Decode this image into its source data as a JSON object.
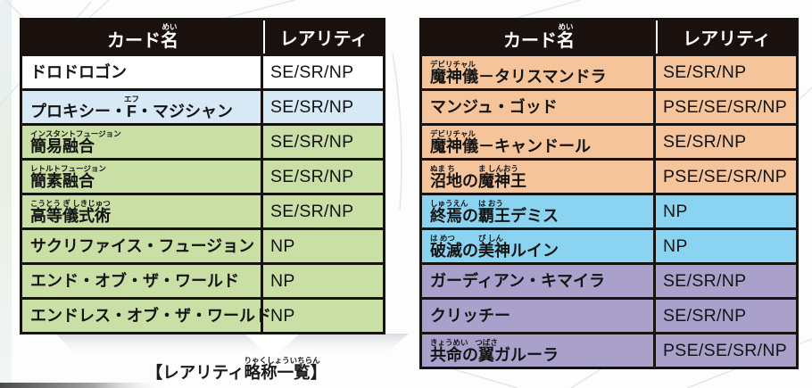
{
  "colors": {
    "border": "#161310",
    "header_bg": "#1a100d",
    "header_text": "#ffffff",
    "body_text": "#141414",
    "white": "#ffffff",
    "blue": "#d8e9f6",
    "green": "#cadfa5",
    "orange": "#f5c49b",
    "cyan": "#8bd4f1",
    "purple": "#a9a0cc"
  },
  "table_header": {
    "name_segments": [
      {
        "t": "カード"
      },
      {
        "t": "名",
        "r": "めい"
      }
    ],
    "rarity_label": "レアリティ"
  },
  "tables": [
    {
      "id": "left",
      "rows": [
        {
          "segments": [
            {
              "t": "ドロドロゴン"
            }
          ],
          "rarity": "SE/SR/NP",
          "bg": "white"
        },
        {
          "segments": [
            {
              "t": "プロキシー・"
            },
            {
              "t": "F",
              "r": "エフ"
            },
            {
              "t": "・マジシャン"
            }
          ],
          "rarity": "SE/SR/NP",
          "bg": "blue"
        },
        {
          "segments": [
            {
              "t": "簡易融合",
              "r": "インスタントフュージョン"
            }
          ],
          "rarity": "SE/SR/NP",
          "bg": "green"
        },
        {
          "segments": [
            {
              "t": "簡素融合",
              "r": "レトルトフュージョン"
            }
          ],
          "rarity": "SE/SR/NP",
          "bg": "green"
        },
        {
          "segments": [
            {
              "t": "高等儀式術",
              "r": "こうとう ぎ しきじゅつ"
            }
          ],
          "rarity": "SE/SR/NP",
          "bg": "green"
        },
        {
          "segments": [
            {
              "t": "サクリファイス・フュージョン"
            }
          ],
          "rarity": "NP",
          "bg": "green"
        },
        {
          "segments": [
            {
              "t": "エンド・オブ・ザ・ワールド"
            }
          ],
          "rarity": "NP",
          "bg": "green"
        },
        {
          "segments": [
            {
              "t": "エンドレス・オブ・ザ・ワールド"
            }
          ],
          "rarity": "NP",
          "bg": "green"
        }
      ]
    },
    {
      "id": "right",
      "rows": [
        {
          "segments": [
            {
              "t": "魔神儀",
              "r": "デビリチャル"
            },
            {
              "t": "－タリスマンドラ"
            }
          ],
          "rarity": "SE/SR/NP",
          "bg": "orange"
        },
        {
          "segments": [
            {
              "t": "マンジュ・ゴッド"
            }
          ],
          "rarity": "PSE/SE/SR/NP",
          "bg": "orange"
        },
        {
          "segments": [
            {
              "t": "魔神儀",
              "r": "デビリチャル"
            },
            {
              "t": "－キャンドール"
            }
          ],
          "rarity": "SE/SR/NP",
          "bg": "orange"
        },
        {
          "segments": [
            {
              "t": "沼地",
              "r": "ぬま ち"
            },
            {
              "t": "の"
            },
            {
              "t": "魔神王",
              "r": "ま しんおう"
            }
          ],
          "rarity": "PSE/SE/SR/NP",
          "bg": "orange"
        },
        {
          "segments": [
            {
              "t": "終焉",
              "r": "しゅうえん"
            },
            {
              "t": "の"
            },
            {
              "t": "覇王",
              "r": "は おう"
            },
            {
              "t": "デミス"
            }
          ],
          "rarity": "NP",
          "bg": "cyan"
        },
        {
          "segments": [
            {
              "t": "破滅",
              "r": "は めつ"
            },
            {
              "t": "の"
            },
            {
              "t": "美神",
              "r": "び しん"
            },
            {
              "t": "ルイン"
            }
          ],
          "rarity": "NP",
          "bg": "cyan"
        },
        {
          "segments": [
            {
              "t": "ガーディアン・キマイラ"
            }
          ],
          "rarity": "SE/SR/NP",
          "bg": "purple"
        },
        {
          "segments": [
            {
              "t": "クリッチー"
            }
          ],
          "rarity": "SE/SR/NP",
          "bg": "purple"
        },
        {
          "segments": [
            {
              "t": "共命",
              "r": "きょうめい"
            },
            {
              "t": "の"
            },
            {
              "t": "翼",
              "r": "つばさ"
            },
            {
              "t": "ガルーラ"
            }
          ],
          "rarity": "PSE/SE/SR/NP",
          "bg": "purple"
        }
      ]
    }
  ],
  "caption": {
    "segments": [
      {
        "t": "【レアリティ"
      },
      {
        "t": "略称一覧",
        "r": "りゃくしょういちらん"
      },
      {
        "t": "】"
      }
    ]
  }
}
